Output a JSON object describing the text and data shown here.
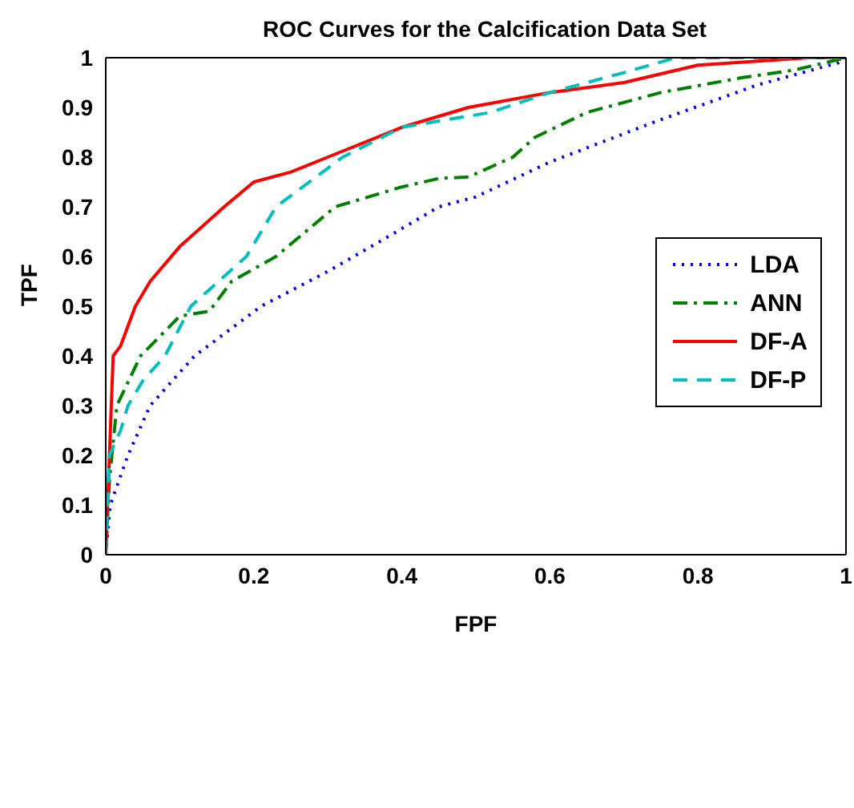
{
  "chart_data": {
    "type": "line",
    "title": "ROC Curves for the Calcification Data Set",
    "xlabel": "FPF",
    "ylabel": "TPF",
    "xlim": [
      0,
      1
    ],
    "ylim": [
      0,
      1
    ],
    "xticks": [
      0,
      0.2,
      0.4,
      0.6,
      0.8,
      1
    ],
    "yticks": [
      0,
      0.1,
      0.2,
      0.3,
      0.4,
      0.5,
      0.6,
      0.7,
      0.8,
      0.9,
      1
    ],
    "grid": false,
    "legend": "right",
    "marker": "none",
    "series": [
      {
        "name": "LDA",
        "color": "#0000ff",
        "line_style": "dotted",
        "x": [
          0,
          0.006,
          0.03,
          0.06,
          0.12,
          0.21,
          0.3,
          0.37,
          0.45,
          0.5,
          0.6,
          0.74,
          0.88,
          0.99,
          1
        ],
        "values": [
          0,
          0.1,
          0.2,
          0.3,
          0.4,
          0.5,
          0.57,
          0.63,
          0.7,
          0.72,
          0.79,
          0.87,
          0.945,
          0.99,
          1
        ]
      },
      {
        "name": "ANN",
        "color": "#008000",
        "line_style": "dashdot",
        "x": [
          0,
          0.005,
          0.015,
          0.047,
          0.1,
          0.14,
          0.17,
          0.23,
          0.31,
          0.4,
          0.45,
          0.49,
          0.55,
          0.58,
          0.65,
          0.75,
          0.86,
          0.93,
          1
        ],
        "values": [
          0,
          0.15,
          0.3,
          0.4,
          0.48,
          0.49,
          0.55,
          0.6,
          0.7,
          0.74,
          0.757,
          0.76,
          0.8,
          0.84,
          0.89,
          0.93,
          0.96,
          0.975,
          1
        ]
      },
      {
        "name": "DF-A",
        "color": "#ff0000",
        "line_style": "solid",
        "x": [
          0,
          0.005,
          0.01,
          0.02,
          0.04,
          0.06,
          0.1,
          0.16,
          0.2,
          0.25,
          0.3,
          0.4,
          0.49,
          0.6,
          0.7,
          0.8,
          0.95,
          1
        ],
        "values": [
          0,
          0.2,
          0.4,
          0.42,
          0.5,
          0.55,
          0.62,
          0.7,
          0.75,
          0.77,
          0.8,
          0.86,
          0.9,
          0.93,
          0.95,
          0.985,
          1,
          1
        ]
      },
      {
        "name": "DF-P",
        "color": "#00bfbf",
        "line_style": "dashed",
        "x": [
          0,
          0.005,
          0.02,
          0.03,
          0.05,
          0.08,
          0.115,
          0.19,
          0.23,
          0.32,
          0.4,
          0.52,
          0.6,
          0.7,
          0.77,
          0.85,
          1
        ],
        "values": [
          0,
          0.2,
          0.25,
          0.3,
          0.35,
          0.4,
          0.5,
          0.6,
          0.7,
          0.8,
          0.86,
          0.89,
          0.93,
          0.97,
          1,
          1,
          1
        ]
      }
    ]
  }
}
